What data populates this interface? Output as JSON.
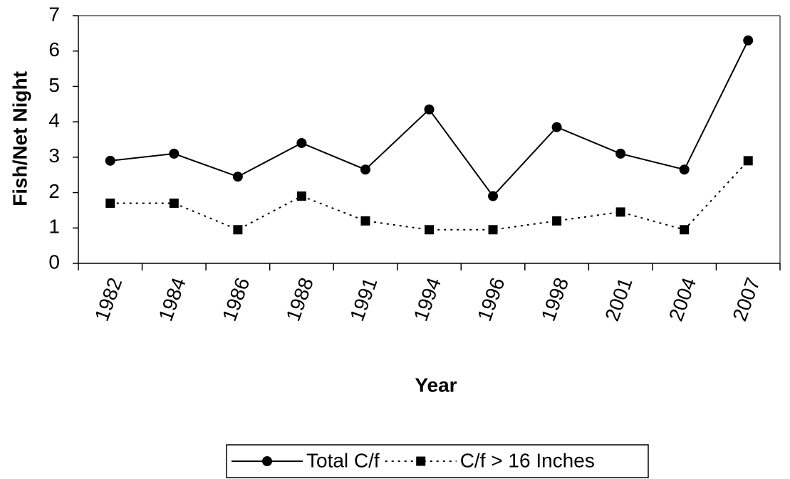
{
  "chart_data": {
    "type": "line",
    "x_label": "Year",
    "y_label": "Fish/Net Night",
    "categories": [
      "1982",
      "1984",
      "1986",
      "1988",
      "1991",
      "1994",
      "1996",
      "1998",
      "2001",
      "2004",
      "2007"
    ],
    "series": [
      {
        "name": "Total C/f",
        "color": "#000000",
        "linestyle": "solid",
        "marker": "circle",
        "values": [
          2.9,
          3.1,
          2.45,
          3.4,
          2.65,
          4.35,
          1.9,
          3.85,
          3.1,
          2.65,
          6.3
        ]
      },
      {
        "name": "C/f > 16 Inches",
        "color": "#000000",
        "linestyle": "dotted",
        "marker": "square",
        "values": [
          1.7,
          1.7,
          0.95,
          1.9,
          1.2,
          0.95,
          0.95,
          1.2,
          1.45,
          0.95,
          2.9
        ]
      }
    ],
    "ylim": [
      0,
      7
    ],
    "yticks": [
      0,
      1,
      2,
      3,
      4,
      5,
      6,
      7
    ],
    "grid": false,
    "legend": "bottom"
  }
}
